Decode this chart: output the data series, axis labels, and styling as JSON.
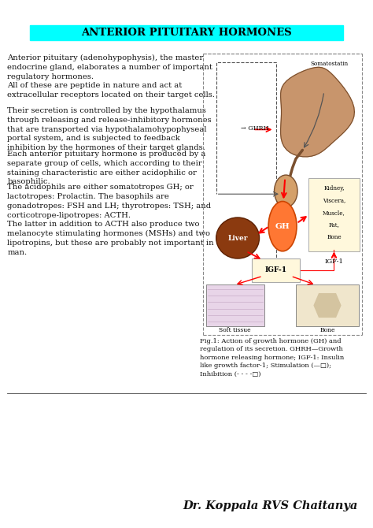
{
  "title": "ANTERIOR PITUITARY HORMONES",
  "title_bg": "#00FFFF",
  "title_color": "#000000",
  "author": "Dr. Koppala RVS Chaitanya",
  "bg_color": "#ffffff",
  "text_fontsize": 7.2,
  "caption_fontsize": 6.0,
  "p1": "Anterior pituitary (adenohypophysis), the master\nendocrine gland, elaborates a number of important\nregulatory hormones.",
  "p2": "All of these are peptide in nature and act at\nextracellular receptors located on their target cells.",
  "p3": "Their secretion is controlled by the hypothalamus\nthrough releasing and release-inhibitory hormones\nthat are transported via hypothalamohypophyseal\nportal system, and is subjected to feedback\ninhibition by the hormones of their target glands.",
  "p4": "Each anterior pituitary hormone is produced by a\nseparate group of cells, which according to their\nstaining characteristic are either acidophilic or\nbasophilic.",
  "p5": "The acidophils are either somatotropes GH; or\nlactotropes: Prolactin. The basophils are\ngonadotropes: FSH and LH; thyrotropes: TSH; and\ncorticotrope-lipotropes: ACTH.",
  "p6": "The latter in addition to ACTH also produce two\nmelanocyte stimulating hormones (MSHs) and two\nlipotropins, but these are probably not important in\nman.",
  "fig_caption": "Fig.1: Action of growth hormone (GH) and\nregulation of its secretion. GHRH—Growth\nhormone releasing hormone; IGF-1: Insulin\nlike growth factor-1; Stimulation (—□);\nInhibition (- - - -□)"
}
